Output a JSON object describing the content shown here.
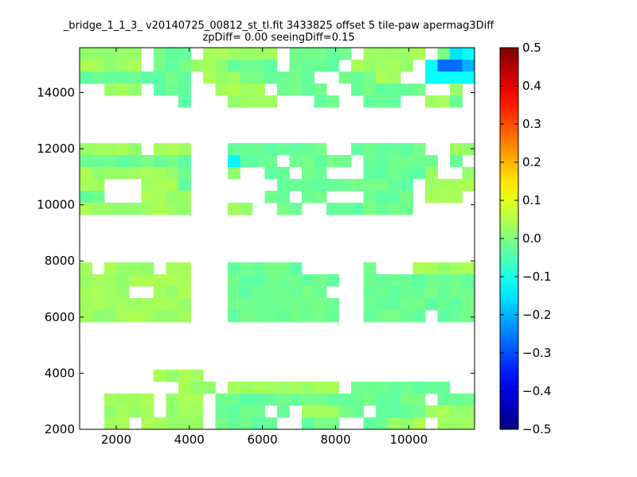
{
  "chart_data": {
    "type": "heatmap",
    "title_line1": "_bridge_1_1_3_ v20140725_00812_st_tl.fit 3433825 offset 5 tile-paw apermag3Diff",
    "title_line2": "zpDiff= 0.00 seeingDiff=0.15",
    "x_range": [
      1000,
      11800
    ],
    "y_range": [
      2000,
      15600
    ],
    "x_ticks": [
      2000,
      4000,
      6000,
      8000,
      10000
    ],
    "y_ticks": [
      2000,
      4000,
      6000,
      8000,
      10000,
      12000,
      14000
    ],
    "colorbar": {
      "colormap": "jet",
      "vmin": -0.5,
      "vmax": 0.5,
      "ticks": [
        0.5,
        0.4,
        0.3,
        0.2,
        0.1,
        0.0,
        -0.1,
        -0.2,
        -0.3,
        -0.4,
        -0.5
      ],
      "tick_labels": [
        "0.5",
        "0.4",
        "0.3",
        "0.2",
        "0.1",
        "0.0",
        "−0.1",
        "−0.2",
        "−0.3",
        "−0.4",
        "−0.5"
      ]
    },
    "grid": {
      "x0": 1000,
      "dx": 337.5,
      "y0": 2000,
      "dy": 425,
      "ncols": 32,
      "nrows": 32,
      "note_value_scale": "values in 0.001 units of apermag3Diff",
      "rows": [
        "aaaaa bbb aaaaaa bbbbb aaaaa bsS",
        "aaaaa bbbaaabbbb bbbb aaaaa SDDe",
        "bbbbbbbbb aaabbbbbb  bbbaa  SSSS",
        "  aaa bbb  aaaa bbbb  bbbbbb  a ",
        "        b   aaaa   bb  bbb  aab ",
        "                                ",
        "                                ",
        "                                ",
        "aaaaa aaa   bbbbbbbb  bbbbbb  aa",
        "bbbbbbbbb   tbbb bbbbb bbbbbb b ",
        "aaaaaaaab   a  bb bb   bbbbba  a",
        "aa   aaab       bbbbbbbbbbb aaaa",
        "bb   aaaa      bb bb   bbbb aaa ",
        "aaaaaaaaa   aa  bb  bbbbbbb     ",
        "                                ",
        "                                ",
        "                                ",
        "                                ",
        "a aaaa aa   bbbbbb     b   aaaaa",
        "aaaaaaaaa   bbbbbbbbb  bbbbbbbbb",
        "aaaa  aaa   bbbbbbbb   bbbbbbbbb",
        "aaaaaaaaa   bbbbbbbbb  bbbbbbbbb",
        "aaaaaaaaa   bbbbbbbbb  bbbbb bbb",
        "                                ",
        "                                ",
        "                                ",
        "                                ",
        "      aaaa                      ",
        "        aaa aaaaaaaaa bbbbbbbb  ",
        "  aaaa aaa bbbbbbbbbbbbbbbbb bbb",
        "  aaaa aaa bbbb b aaabb bbbbaaaa",
        "  aa aaaaa bbbbb  bbb  bbaaa aaa"
      ]
    },
    "legend": {
      "a": 0.03,
      "b": -0.02,
      "t": -0.13,
      "s": -0.15,
      "S": -0.12,
      "D": -0.27,
      "e": -0.2
    }
  }
}
